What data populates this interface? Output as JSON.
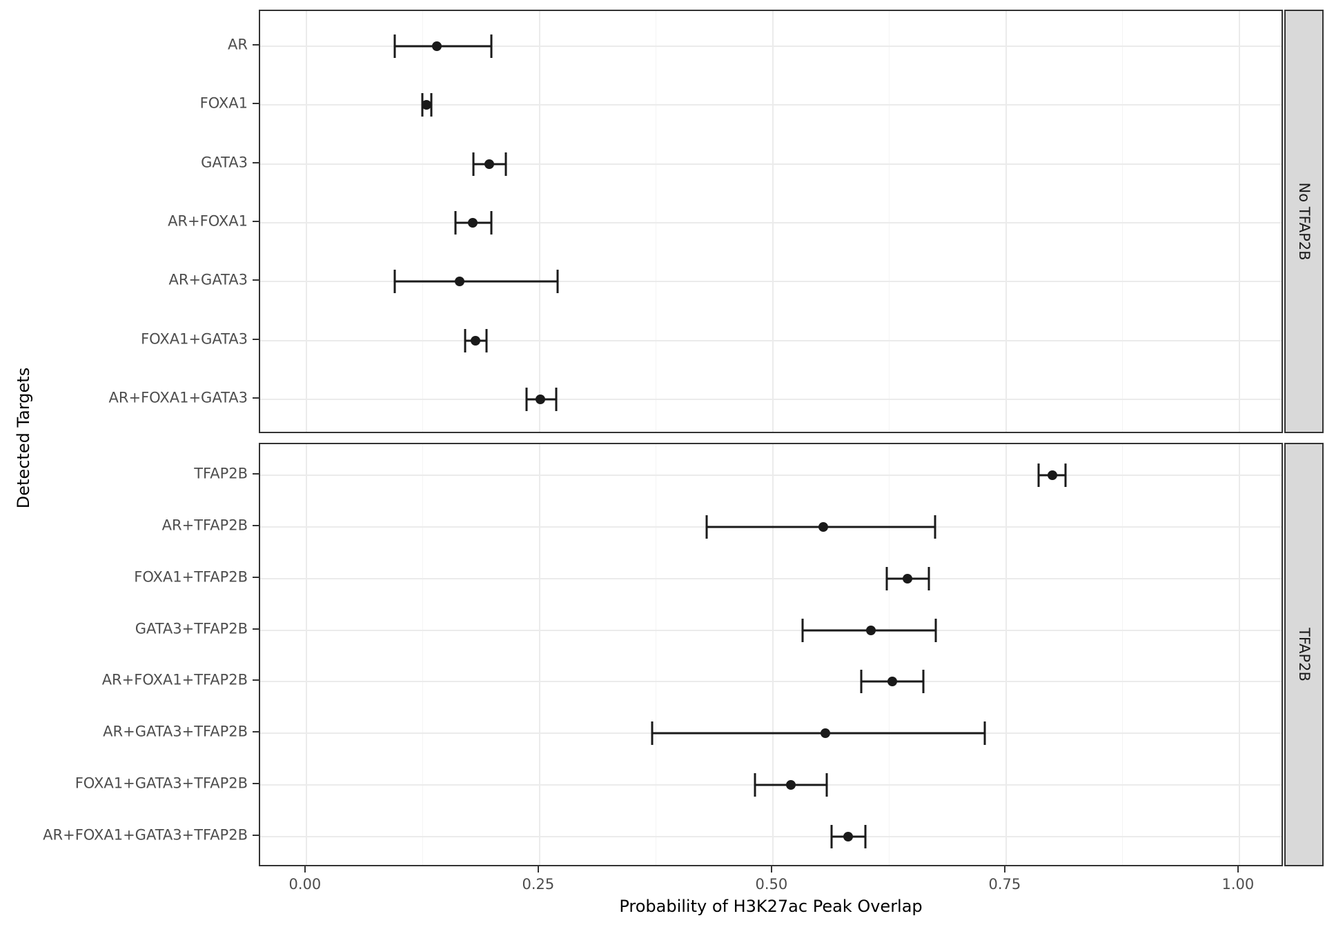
{
  "figure": {
    "x_axis_title": "Probability of H3K27ac Peak Overlap",
    "y_axis_title": "Detected Targets"
  },
  "colors": {
    "background": "#FFFFFF",
    "panel_background": "#FFFFFF",
    "panel_border": "#333333",
    "grid_major": "#EBEBEB",
    "grid_minor": "#F4F4F4",
    "strip_background": "#D9D9D9",
    "tick_text": "#4D4D4D",
    "title_text": "#000000",
    "data_color": "#1A1A1A"
  },
  "chart_data": {
    "type": "scatter",
    "subtype": "pointrange-with-error-bars",
    "title": "",
    "xlabel": "Probability of H3K27ac Peak Overlap",
    "ylabel": "Detected Targets",
    "xlim": [
      -0.05,
      1.05
    ],
    "x_ticks": [
      0.0,
      0.25,
      0.5,
      0.75,
      1.0
    ],
    "x_tick_labels": [
      "0.00",
      "0.25",
      "0.50",
      "0.75",
      "1.00"
    ],
    "x_minor_ticks": [
      0.125,
      0.375,
      0.625,
      0.875
    ],
    "grid": true,
    "facet_position": "right",
    "panels": [
      {
        "facet_label": "No TFAP2B",
        "categories": [
          "AR",
          "FOXA1",
          "GATA3",
          "AR+FOXA1",
          "AR+GATA3",
          "FOXA1+GATA3",
          "AR+FOXA1+GATA3"
        ],
        "values": [
          0.14,
          0.129,
          0.196,
          0.178,
          0.164,
          0.181,
          0.251
        ],
        "lower": [
          0.095,
          0.124,
          0.179,
          0.16,
          0.095,
          0.17,
          0.236
        ],
        "upper": [
          0.198,
          0.134,
          0.214,
          0.198,
          0.269,
          0.193,
          0.268
        ]
      },
      {
        "facet_label": "TFAP2B",
        "categories": [
          "TFAP2B",
          "AR+TFAP2B",
          "FOXA1+TFAP2B",
          "GATA3+TFAP2B",
          "AR+FOXA1+TFAP2B",
          "AR+GATA3+TFAP2B",
          "FOXA1+GATA3+TFAP2B",
          "AR+FOXA1+GATA3+TFAP2B"
        ],
        "values": [
          0.8,
          0.554,
          0.644,
          0.605,
          0.628,
          0.556,
          0.519,
          0.581
        ],
        "lower": [
          0.785,
          0.429,
          0.622,
          0.532,
          0.595,
          0.371,
          0.481,
          0.563
        ],
        "upper": [
          0.814,
          0.674,
          0.667,
          0.675,
          0.661,
          0.727,
          0.558,
          0.599
        ]
      }
    ]
  }
}
